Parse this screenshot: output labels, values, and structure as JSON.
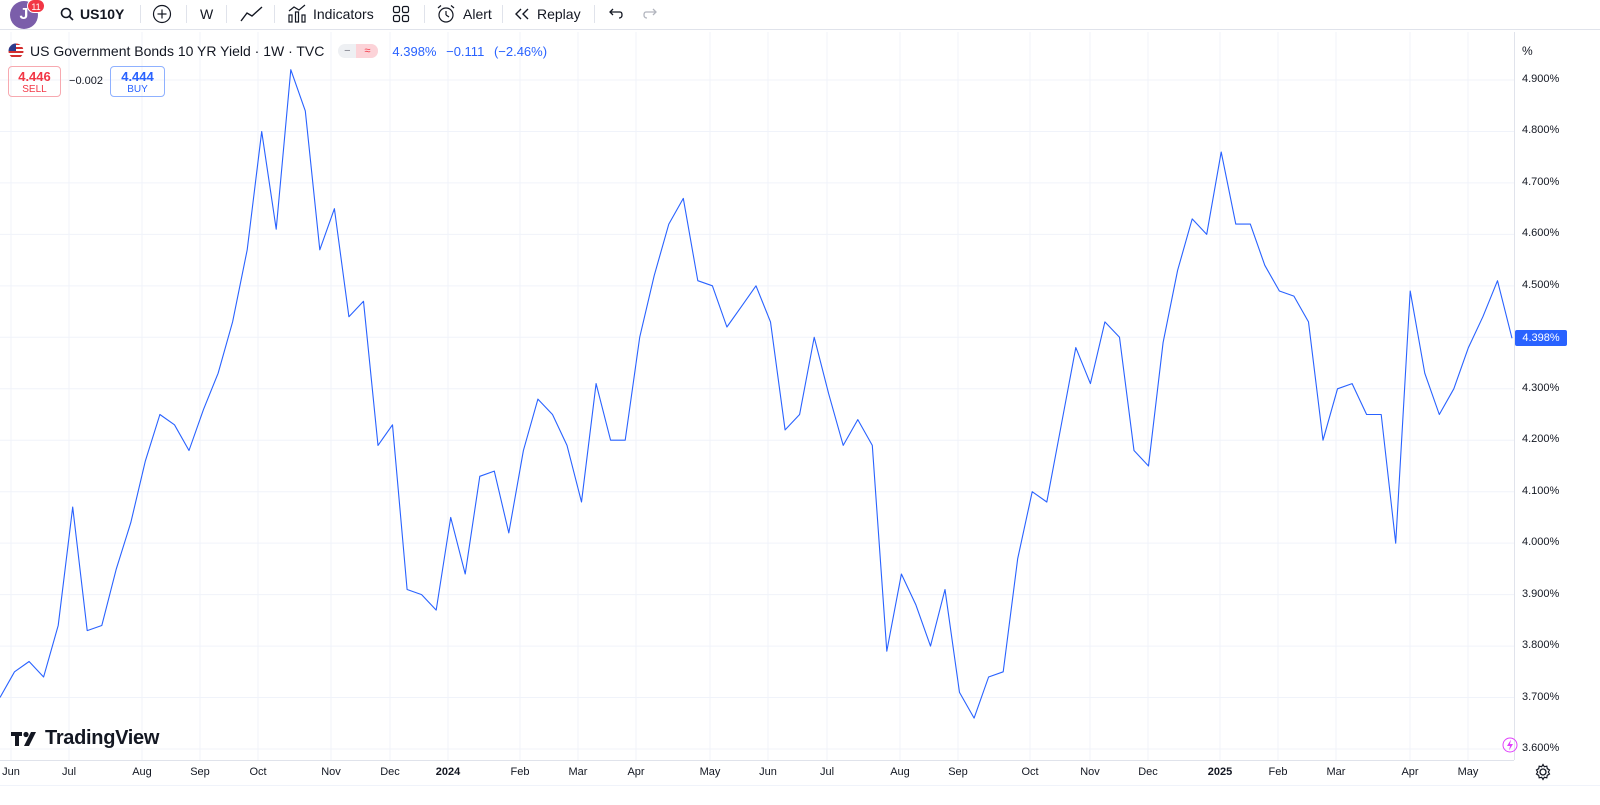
{
  "toolbar": {
    "avatar_letter": "J",
    "notification_count": "11",
    "symbol": "US10Y",
    "interval": "W",
    "indicators_label": "Indicators",
    "alert_label": "Alert",
    "replay_label": "Replay"
  },
  "legend": {
    "title": "US Government Bonds 10 YR Yield · 1W · TVC",
    "last": "4.398%",
    "change": "−0.111",
    "change_pct": "(−2.46%)"
  },
  "order": {
    "sell_price": "4.446",
    "sell_label": "SELL",
    "spread": "−0.002",
    "buy_price": "4.444",
    "buy_label": "BUY"
  },
  "price_axis": {
    "unit": "%",
    "ticks": [
      "4.900%",
      "4.800%",
      "4.700%",
      "4.600%",
      "4.500%",
      "4.400%",
      "4.300%",
      "4.200%",
      "4.100%",
      "4.000%",
      "3.900%",
      "3.800%",
      "3.700%",
      "3.600%"
    ],
    "last_price_label": "4.398%"
  },
  "time_axis": {
    "labels": [
      "Jun",
      "Jul",
      "Aug",
      "Sep",
      "Oct",
      "Nov",
      "Dec",
      "2024",
      "Feb",
      "Mar",
      "Apr",
      "May",
      "Jun",
      "Jul",
      "Aug",
      "Sep",
      "Oct",
      "Nov",
      "Dec",
      "2025",
      "Feb",
      "Mar",
      "Apr",
      "May"
    ]
  },
  "branding": {
    "logo_text": "TradingView"
  },
  "colors": {
    "line": "#2962ff",
    "sell": "#f23645",
    "buy": "#2962ff",
    "grid": "#f0f3fa"
  },
  "chart_data": {
    "type": "line",
    "series": [
      {
        "values": [
          3.7,
          3.75,
          3.77,
          3.74,
          3.84,
          4.07,
          3.83,
          3.84,
          3.95,
          4.04,
          4.16,
          4.25,
          4.23,
          4.18,
          4.26,
          4.33,
          4.43,
          4.57,
          4.8,
          4.61,
          4.92,
          4.84,
          4.57,
          4.65,
          4.44,
          4.47,
          4.19,
          4.23,
          3.91,
          3.9,
          3.87,
          4.05,
          3.94,
          4.13,
          4.14,
          4.02,
          4.18,
          4.28,
          4.25,
          4.19,
          4.08,
          4.31,
          4.2,
          4.2,
          4.4,
          4.52,
          4.62,
          4.67,
          4.51,
          4.5,
          4.42,
          4.46,
          4.5,
          4.43,
          4.22,
          4.25,
          4.4,
          4.29,
          4.19,
          4.24,
          4.19,
          3.79,
          3.94,
          3.88,
          3.8,
          3.91,
          3.71,
          3.66,
          3.74,
          3.75,
          3.97,
          4.1,
          4.08,
          4.23,
          4.38,
          4.31,
          4.43,
          4.4,
          4.18,
          4.15,
          4.39,
          4.53,
          4.63,
          4.6,
          4.76,
          4.62,
          4.62,
          4.54,
          4.49,
          4.48,
          4.43,
          4.2,
          4.3,
          4.31,
          4.25,
          4.25,
          4.0,
          4.49,
          4.33,
          4.25,
          4.3,
          4.38,
          4.44,
          4.51,
          4.398
        ]
      }
    ],
    "ylim": [
      3.57,
      4.95
    ],
    "x_labels": [
      "Jun",
      "Jul",
      "Aug",
      "Sep",
      "Oct",
      "Nov",
      "Dec",
      "2024",
      "Feb",
      "Mar",
      "Apr",
      "May",
      "Jun",
      "Jul",
      "Aug",
      "Sep",
      "Oct",
      "Nov",
      "Dec",
      "2025",
      "Feb",
      "Mar",
      "Apr",
      "May"
    ],
    "grid": true
  }
}
